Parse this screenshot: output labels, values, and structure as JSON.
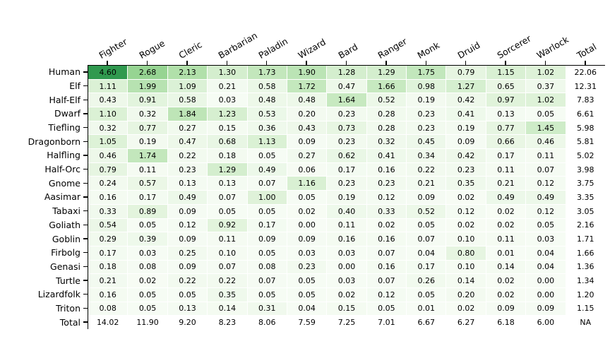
{
  "chart_data": {
    "type": "heatmap",
    "title": "",
    "xlabel": "",
    "ylabel": "",
    "legend": "none",
    "grid": "off",
    "columns": [
      "Fighter",
      "Rogue",
      "Cleric",
      "Barbarian",
      "Paladin",
      "Wizard",
      "Bard",
      "Ranger",
      "Monk",
      "Druid",
      "Sorcerer",
      "Warlock",
      "Total"
    ],
    "rows": [
      "Human",
      "Elf",
      "Half-Elf",
      "Dwarf",
      "Tiefling",
      "Dragonborn",
      "Halfling",
      "Half-Orc",
      "Gnome",
      "Aasimar",
      "Tabaxi",
      "Goliath",
      "Goblin",
      "Firbolg",
      "Genasi",
      "Turtle",
      "Lizardfolk",
      "Triton",
      "Total"
    ],
    "values": [
      [
        "4.60",
        "2.68",
        "2.13",
        "1.30",
        "1.73",
        "1.90",
        "1.28",
        "1.29",
        "1.75",
        "0.79",
        "1.15",
        "1.02",
        "22.06"
      ],
      [
        "1.11",
        "1.99",
        "1.09",
        "0.21",
        "0.58",
        "1.72",
        "0.47",
        "1.66",
        "0.98",
        "1.27",
        "0.65",
        "0.37",
        "12.31"
      ],
      [
        "0.43",
        "0.91",
        "0.58",
        "0.03",
        "0.48",
        "0.48",
        "1.64",
        "0.52",
        "0.19",
        "0.42",
        "0.97",
        "1.02",
        "7.83"
      ],
      [
        "1.10",
        "0.32",
        "1.84",
        "1.23",
        "0.53",
        "0.20",
        "0.23",
        "0.28",
        "0.23",
        "0.41",
        "0.13",
        "0.05",
        "6.61"
      ],
      [
        "0.32",
        "0.77",
        "0.27",
        "0.15",
        "0.36",
        "0.43",
        "0.73",
        "0.28",
        "0.23",
        "0.19",
        "0.77",
        "1.45",
        "5.98"
      ],
      [
        "1.05",
        "0.19",
        "0.47",
        "0.68",
        "1.13",
        "0.09",
        "0.23",
        "0.32",
        "0.45",
        "0.09",
        "0.66",
        "0.46",
        "5.81"
      ],
      [
        "0.46",
        "1.74",
        "0.22",
        "0.18",
        "0.05",
        "0.27",
        "0.62",
        "0.41",
        "0.34",
        "0.42",
        "0.17",
        "0.11",
        "5.02"
      ],
      [
        "0.79",
        "0.11",
        "0.23",
        "1.29",
        "0.49",
        "0.06",
        "0.17",
        "0.16",
        "0.22",
        "0.23",
        "0.11",
        "0.07",
        "3.98"
      ],
      [
        "0.24",
        "0.57",
        "0.13",
        "0.13",
        "0.07",
        "1.16",
        "0.23",
        "0.23",
        "0.21",
        "0.35",
        "0.21",
        "0.12",
        "3.75"
      ],
      [
        "0.16",
        "0.17",
        "0.49",
        "0.07",
        "1.00",
        "0.05",
        "0.19",
        "0.12",
        "0.09",
        "0.02",
        "0.49",
        "0.49",
        "3.35"
      ],
      [
        "0.33",
        "0.89",
        "0.09",
        "0.05",
        "0.05",
        "0.02",
        "0.40",
        "0.33",
        "0.52",
        "0.12",
        "0.02",
        "0.12",
        "3.05"
      ],
      [
        "0.54",
        "0.05",
        "0.12",
        "0.92",
        "0.17",
        "0.00",
        "0.11",
        "0.02",
        "0.05",
        "0.02",
        "0.02",
        "0.05",
        "2.16"
      ],
      [
        "0.29",
        "0.39",
        "0.09",
        "0.11",
        "0.09",
        "0.09",
        "0.16",
        "0.16",
        "0.07",
        "0.10",
        "0.11",
        "0.03",
        "1.71"
      ],
      [
        "0.17",
        "0.03",
        "0.25",
        "0.10",
        "0.05",
        "0.03",
        "0.03",
        "0.07",
        "0.04",
        "0.80",
        "0.01",
        "0.04",
        "1.66"
      ],
      [
        "0.18",
        "0.08",
        "0.09",
        "0.07",
        "0.08",
        "0.23",
        "0.00",
        "0.16",
        "0.17",
        "0.10",
        "0.14",
        "0.04",
        "1.36"
      ],
      [
        "0.21",
        "0.02",
        "0.22",
        "0.22",
        "0.07",
        "0.05",
        "0.03",
        "0.07",
        "0.26",
        "0.14",
        "0.02",
        "0.00",
        "1.34"
      ],
      [
        "0.16",
        "0.05",
        "0.05",
        "0.35",
        "0.05",
        "0.05",
        "0.02",
        "0.12",
        "0.05",
        "0.20",
        "0.02",
        "0.00",
        "1.20"
      ],
      [
        "0.08",
        "0.05",
        "0.13",
        "0.14",
        "0.31",
        "0.04",
        "0.15",
        "0.05",
        "0.01",
        "0.02",
        "0.09",
        "0.09",
        "1.15"
      ],
      [
        "14.02",
        "11.90",
        "9.20",
        "8.23",
        "8.06",
        "7.59",
        "7.25",
        "7.01",
        "6.67",
        "6.27",
        "6.18",
        "6.00",
        "NA"
      ]
    ],
    "na_label": "NA",
    "shading": {
      "note": "Only the 18x12 race-by-class cells are shaded; Total row and Total column are white",
      "colormap": "Greens",
      "vmin": 0,
      "vmax": 6.6,
      "stops": [
        "#f7fcf5",
        "#e5f5e0",
        "#c7e9c0",
        "#a1d99b",
        "#74c476",
        "#41ab5d",
        "#238b45",
        "#006d2c",
        "#00441b"
      ],
      "text_color": "#000000",
      "background": "#ffffff",
      "axis_color": "#000000"
    }
  }
}
